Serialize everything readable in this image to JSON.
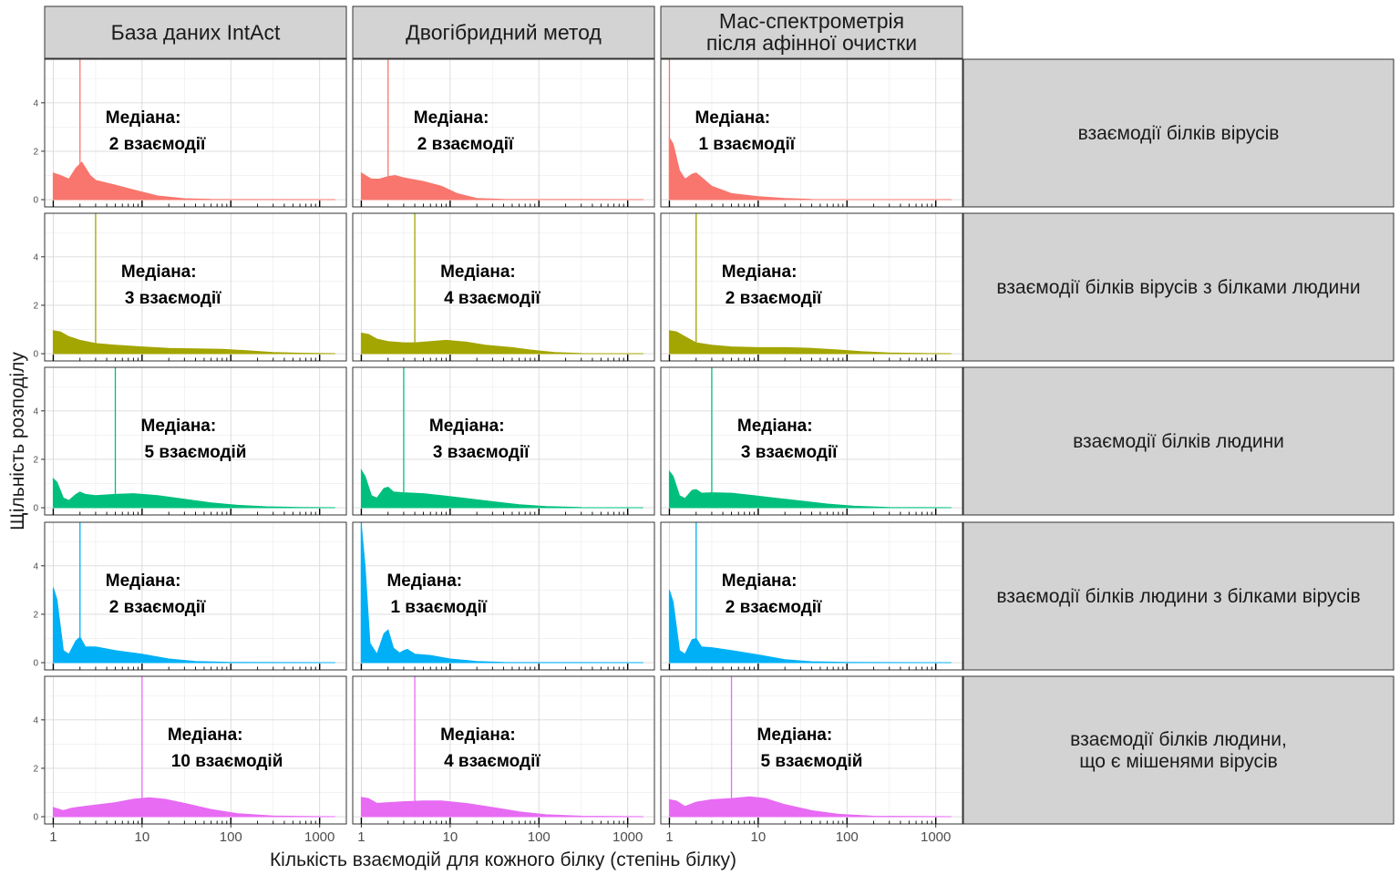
{
  "chart_data": {
    "type": "area",
    "xlabel": "Кількість взаємодій для кожного білку (степінь білку)",
    "ylabel": "Щільність розподілу",
    "x_scale": "log10",
    "xlim": [
      0.8,
      2000
    ],
    "ylim": [
      -0.3,
      5.8
    ],
    "x_ticks": [
      1,
      10,
      100,
      1000
    ],
    "x_tick_labels": [
      "1",
      "10",
      "100",
      "1000"
    ],
    "y_ticks": [
      0,
      2,
      4
    ],
    "y_tick_labels": [
      "0",
      "2",
      "4"
    ],
    "grid": true,
    "columns": [
      "База даних IntAct",
      "Двогібридний метод",
      "Мас-спектрометрія\nпісля афінної очистки"
    ],
    "rows": [
      {
        "label": "взаємодії білків вірусів",
        "color": "#F8766D"
      },
      {
        "label": "взаємодії білків вірусів з білками людини",
        "color": "#A3A500"
      },
      {
        "label": "взаємодії білків людини",
        "color": "#00BF7D"
      },
      {
        "label": "взаємодії білків людини з білками вірусів",
        "color": "#00B0F6"
      },
      {
        "label": "взаємодії білків людини,\nщо є мішенями вірусів",
        "color": "#E76BF3"
      }
    ],
    "annotation_label": "Медіана:",
    "panels": [
      [
        {
          "median": 2,
          "median_label": "2 взаємодії",
          "density": [
            [
              1,
              1.1
            ],
            [
              1.2,
              1.0
            ],
            [
              1.5,
              0.85
            ],
            [
              1.8,
              1.3
            ],
            [
              2.1,
              1.55
            ],
            [
              2.6,
              1.0
            ],
            [
              3,
              0.8
            ],
            [
              5,
              0.6
            ],
            [
              8,
              0.4
            ],
            [
              15,
              0.15
            ],
            [
              30,
              0.04
            ],
            [
              60,
              0.01
            ],
            [
              1500,
              0.0
            ]
          ]
        },
        {
          "median": 2,
          "median_label": "2 взаємодії",
          "density": [
            [
              1,
              1.1
            ],
            [
              1.3,
              0.85
            ],
            [
              1.6,
              0.85
            ],
            [
              2,
              0.95
            ],
            [
              2.4,
              1.0
            ],
            [
              3,
              0.9
            ],
            [
              5,
              0.75
            ],
            [
              8,
              0.55
            ],
            [
              12,
              0.25
            ],
            [
              20,
              0.05
            ],
            [
              40,
              0.01
            ],
            [
              1500,
              0.0
            ]
          ]
        },
        {
          "median": 1,
          "median_label": "1 взаємодії",
          "density": [
            [
              1,
              2.55
            ],
            [
              1.1,
              2.3
            ],
            [
              1.3,
              1.2
            ],
            [
              1.5,
              0.85
            ],
            [
              1.8,
              1.05
            ],
            [
              2,
              1.1
            ],
            [
              2.5,
              0.8
            ],
            [
              3,
              0.55
            ],
            [
              5,
              0.25
            ],
            [
              10,
              0.12
            ],
            [
              20,
              0.05
            ],
            [
              40,
              0.01
            ],
            [
              1500,
              0.0
            ]
          ]
        }
      ],
      [
        {
          "median": 3,
          "median_label": "3 взаємодії",
          "density": [
            [
              1,
              0.95
            ],
            [
              1.2,
              0.9
            ],
            [
              1.5,
              0.7
            ],
            [
              2,
              0.55
            ],
            [
              3,
              0.42
            ],
            [
              5,
              0.35
            ],
            [
              10,
              0.28
            ],
            [
              20,
              0.22
            ],
            [
              40,
              0.2
            ],
            [
              80,
              0.18
            ],
            [
              150,
              0.12
            ],
            [
              300,
              0.05
            ],
            [
              600,
              0.02
            ],
            [
              1500,
              0.0
            ]
          ]
        },
        {
          "median": 4,
          "median_label": "4 взаємодії",
          "density": [
            [
              1,
              0.85
            ],
            [
              1.2,
              0.8
            ],
            [
              1.5,
              0.6
            ],
            [
              2,
              0.5
            ],
            [
              3,
              0.45
            ],
            [
              4,
              0.45
            ],
            [
              6,
              0.5
            ],
            [
              9,
              0.55
            ],
            [
              15,
              0.48
            ],
            [
              25,
              0.35
            ],
            [
              50,
              0.25
            ],
            [
              80,
              0.15
            ],
            [
              150,
              0.05
            ],
            [
              300,
              0.01
            ],
            [
              1500,
              0.0
            ]
          ]
        },
        {
          "median": 2,
          "median_label": "2 взаємодії",
          "density": [
            [
              1,
              0.95
            ],
            [
              1.2,
              0.9
            ],
            [
              1.5,
              0.7
            ],
            [
              2,
              0.45
            ],
            [
              3,
              0.35
            ],
            [
              5,
              0.28
            ],
            [
              10,
              0.25
            ],
            [
              20,
              0.25
            ],
            [
              40,
              0.22
            ],
            [
              80,
              0.15
            ],
            [
              150,
              0.08
            ],
            [
              300,
              0.03
            ],
            [
              700,
              0.01
            ],
            [
              1500,
              0.0
            ]
          ]
        }
      ],
      [
        {
          "median": 5,
          "median_label": "5 взаємодій",
          "density": [
            [
              1,
              1.2
            ],
            [
              1.1,
              1.05
            ],
            [
              1.3,
              0.4
            ],
            [
              1.5,
              0.3
            ],
            [
              1.8,
              0.55
            ],
            [
              2,
              0.65
            ],
            [
              2.3,
              0.55
            ],
            [
              3,
              0.5
            ],
            [
              5,
              0.55
            ],
            [
              8,
              0.58
            ],
            [
              15,
              0.5
            ],
            [
              30,
              0.35
            ],
            [
              60,
              0.2
            ],
            [
              120,
              0.1
            ],
            [
              250,
              0.04
            ],
            [
              600,
              0.01
            ],
            [
              1500,
              0.0
            ]
          ]
        },
        {
          "median": 3,
          "median_label": "3 взаємодії",
          "density": [
            [
              1,
              1.55
            ],
            [
              1.1,
              1.3
            ],
            [
              1.3,
              0.5
            ],
            [
              1.5,
              0.4
            ],
            [
              1.8,
              0.8
            ],
            [
              2,
              0.85
            ],
            [
              2.3,
              0.65
            ],
            [
              3,
              0.62
            ],
            [
              5,
              0.58
            ],
            [
              8,
              0.5
            ],
            [
              15,
              0.38
            ],
            [
              30,
              0.25
            ],
            [
              60,
              0.12
            ],
            [
              120,
              0.05
            ],
            [
              300,
              0.01
            ],
            [
              1500,
              0.0
            ]
          ]
        },
        {
          "median": 3,
          "median_label": "3 взаємодії",
          "density": [
            [
              1,
              1.5
            ],
            [
              1.1,
              1.3
            ],
            [
              1.3,
              0.5
            ],
            [
              1.5,
              0.38
            ],
            [
              1.8,
              0.72
            ],
            [
              2,
              0.75
            ],
            [
              2.3,
              0.6
            ],
            [
              3,
              0.62
            ],
            [
              5,
              0.6
            ],
            [
              8,
              0.52
            ],
            [
              15,
              0.4
            ],
            [
              30,
              0.28
            ],
            [
              60,
              0.15
            ],
            [
              120,
              0.06
            ],
            [
              300,
              0.01
            ],
            [
              1500,
              0.0
            ]
          ]
        }
      ],
      [
        {
          "median": 2,
          "median_label": "2 взаємодії",
          "density": [
            [
              1,
              3.1
            ],
            [
              1.1,
              2.6
            ],
            [
              1.3,
              0.5
            ],
            [
              1.5,
              0.35
            ],
            [
              1.8,
              0.9
            ],
            [
              2,
              1.05
            ],
            [
              2.3,
              0.65
            ],
            [
              3,
              0.65
            ],
            [
              5,
              0.5
            ],
            [
              10,
              0.35
            ],
            [
              20,
              0.15
            ],
            [
              40,
              0.05
            ],
            [
              100,
              0.01
            ],
            [
              1500,
              0.0
            ]
          ]
        },
        {
          "median": 1,
          "median_label": "1 взаємодії",
          "density": [
            [
              1,
              5.7
            ],
            [
              1.1,
              4.0
            ],
            [
              1.25,
              0.8
            ],
            [
              1.5,
              0.35
            ],
            [
              1.8,
              1.2
            ],
            [
              2,
              1.35
            ],
            [
              2.3,
              0.6
            ],
            [
              2.7,
              0.4
            ],
            [
              3,
              0.5
            ],
            [
              3.3,
              0.55
            ],
            [
              4,
              0.35
            ],
            [
              6,
              0.3
            ],
            [
              10,
              0.15
            ],
            [
              20,
              0.05
            ],
            [
              40,
              0.01
            ],
            [
              1500,
              0.0
            ]
          ]
        },
        {
          "median": 2,
          "median_label": "2 взаємодії",
          "density": [
            [
              1,
              3.0
            ],
            [
              1.1,
              2.5
            ],
            [
              1.3,
              0.5
            ],
            [
              1.5,
              0.35
            ],
            [
              1.8,
              0.95
            ],
            [
              2,
              1.0
            ],
            [
              2.3,
              0.65
            ],
            [
              3,
              0.62
            ],
            [
              5,
              0.5
            ],
            [
              10,
              0.32
            ],
            [
              20,
              0.12
            ],
            [
              40,
              0.04
            ],
            [
              100,
              0.01
            ],
            [
              1500,
              0.0
            ]
          ]
        }
      ],
      [
        {
          "median": 10,
          "median_label": "10 взаємодій",
          "density": [
            [
              1,
              0.38
            ],
            [
              1.3,
              0.25
            ],
            [
              1.6,
              0.35
            ],
            [
              2,
              0.4
            ],
            [
              3,
              0.48
            ],
            [
              5,
              0.58
            ],
            [
              8,
              0.72
            ],
            [
              12,
              0.78
            ],
            [
              18,
              0.72
            ],
            [
              30,
              0.55
            ],
            [
              60,
              0.3
            ],
            [
              120,
              0.12
            ],
            [
              300,
              0.03
            ],
            [
              700,
              0.01
            ],
            [
              1500,
              0.0
            ]
          ]
        },
        {
          "median": 4,
          "median_label": "4 взаємодії",
          "density": [
            [
              1,
              0.8
            ],
            [
              1.2,
              0.75
            ],
            [
              1.5,
              0.55
            ],
            [
              2,
              0.58
            ],
            [
              3,
              0.62
            ],
            [
              5,
              0.65
            ],
            [
              8,
              0.65
            ],
            [
              15,
              0.55
            ],
            [
              30,
              0.38
            ],
            [
              60,
              0.2
            ],
            [
              120,
              0.08
            ],
            [
              300,
              0.02
            ],
            [
              700,
              0.01
            ],
            [
              1500,
              0.0
            ]
          ]
        },
        {
          "median": 5,
          "median_label": "5 взаємодій",
          "density": [
            [
              1,
              0.7
            ],
            [
              1.2,
              0.65
            ],
            [
              1.5,
              0.42
            ],
            [
              2,
              0.6
            ],
            [
              3,
              0.7
            ],
            [
              5,
              0.75
            ],
            [
              8,
              0.82
            ],
            [
              12,
              0.75
            ],
            [
              20,
              0.5
            ],
            [
              40,
              0.25
            ],
            [
              80,
              0.1
            ],
            [
              200,
              0.02
            ],
            [
              500,
              0.01
            ],
            [
              1500,
              0.0
            ]
          ]
        }
      ]
    ]
  }
}
